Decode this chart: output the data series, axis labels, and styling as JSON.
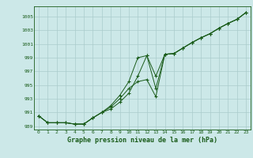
{
  "hours": [
    0,
    1,
    2,
    3,
    4,
    5,
    6,
    7,
    8,
    9,
    10,
    11,
    12,
    13,
    14,
    15,
    16,
    17,
    18,
    19,
    20,
    21,
    22,
    23
  ],
  "line1": [
    990.5,
    989.5,
    989.5,
    989.5,
    989.3,
    989.3,
    990.2,
    991.0,
    992.0,
    993.5,
    995.5,
    999.0,
    999.3,
    996.3,
    999.5,
    999.6,
    1000.4,
    1001.2,
    1001.9,
    1002.5,
    1003.3,
    1004.0,
    1004.6,
    1005.6
  ],
  "line2": [
    990.5,
    989.5,
    989.5,
    989.5,
    989.3,
    989.3,
    990.2,
    991.0,
    991.8,
    993.0,
    994.5,
    995.5,
    995.8,
    993.3,
    999.5,
    999.6,
    1000.4,
    1001.2,
    1001.9,
    1002.5,
    1003.3,
    1004.0,
    1004.6,
    1005.6
  ],
  "line3": [
    990.5,
    989.5,
    989.5,
    989.5,
    989.3,
    989.3,
    990.2,
    991.0,
    991.5,
    992.5,
    993.8,
    996.3,
    999.3,
    994.5,
    999.5,
    999.6,
    1000.4,
    1001.2,
    1001.9,
    1002.5,
    1003.3,
    1004.0,
    1004.6,
    1005.6
  ],
  "ylim": [
    988.5,
    1006.5
  ],
  "yticks": [
    989,
    991,
    993,
    995,
    997,
    999,
    1001,
    1003,
    1005
  ],
  "xlim": [
    -0.5,
    23.5
  ],
  "line_color": "#1a5c1a",
  "bg_color": "#cce8e8",
  "grid_color": "#aacccc",
  "xlabel": "Graphe pression niveau de la mer (hPa)"
}
